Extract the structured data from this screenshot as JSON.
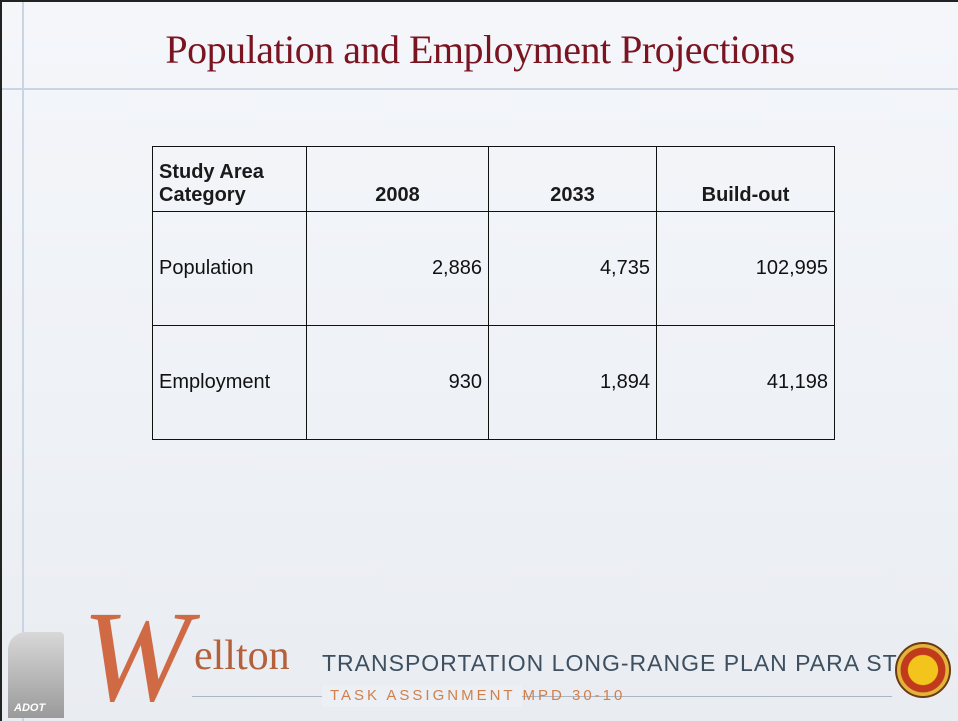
{
  "header": {
    "title": "Population and Employment Projections"
  },
  "table": {
    "columns": [
      "Study Area Category",
      "2008",
      "2033",
      "Build-out"
    ],
    "rows": [
      [
        "Population",
        "2,886",
        "4,735",
        "102,995"
      ],
      [
        "Employment",
        "930",
        "1,894",
        "41,198"
      ]
    ]
  },
  "footer": {
    "logo_left": "ADOT",
    "brand_initial": "W",
    "brand_rest": "ellton",
    "title": "TRANSPORTATION LONG-RANGE PLAN PARA STUDY",
    "subtitle": "TASK ASSIGNMENT MPD 30-10"
  }
}
